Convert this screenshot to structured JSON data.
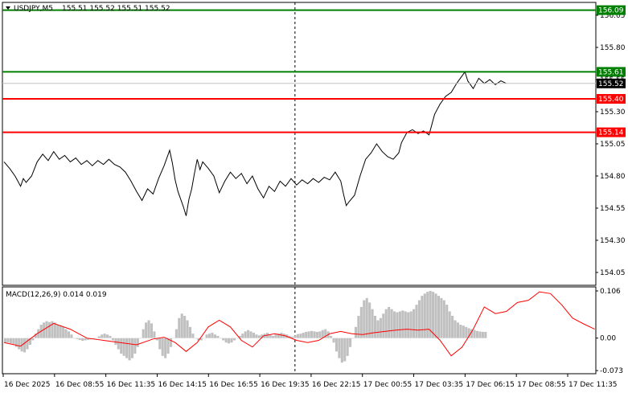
{
  "window": {
    "title": "USDJPY,M5",
    "ohlc": "155.51 155.52 155.51 155.52",
    "indicator_label": "MACD(12,26,9) 0.014 0.019"
  },
  "colors": {
    "price_line": "#000000",
    "support": "#ff0000",
    "resistance": "#008000",
    "histogram": "#c0c0c0",
    "signal": "#ff0000",
    "current_tag": "#000000"
  },
  "chart_data": [
    {
      "type": "line",
      "symbol": "USDJPY",
      "timeframe": "M5",
      "ylim": [
        153.95,
        156.15
      ],
      "yticks": [
        "156.05",
        "155.80",
        "155.55",
        "155.30",
        "155.05",
        "154.80",
        "154.55",
        "154.30",
        "154.05"
      ],
      "x_time_labels": [
        "16 Dec 2025",
        "16 Dec 08:55",
        "16 Dec 11:35",
        "16 Dec 14:15",
        "16 Dec 16:55",
        "16 Dec 19:35",
        "16 Dec 22:15",
        "17 Dec 00:55",
        "17 Dec 03:35",
        "17 Dec 06:15",
        "17 Dec 08:55",
        "17 Dec 11:35"
      ],
      "price_points": [
        [
          0,
          154.91
        ],
        [
          2,
          154.86
        ],
        [
          4,
          154.8
        ],
        [
          5,
          154.76
        ],
        [
          6,
          154.72
        ],
        [
          7,
          154.78
        ],
        [
          8,
          154.75
        ],
        [
          10,
          154.8
        ],
        [
          12,
          154.91
        ],
        [
          14,
          154.97
        ],
        [
          16,
          154.92
        ],
        [
          18,
          154.99
        ],
        [
          20,
          154.93
        ],
        [
          22,
          154.96
        ],
        [
          24,
          154.91
        ],
        [
          26,
          154.94
        ],
        [
          28,
          154.89
        ],
        [
          30,
          154.92
        ],
        [
          32,
          154.88
        ],
        [
          34,
          154.92
        ],
        [
          36,
          154.89
        ],
        [
          38,
          154.93
        ],
        [
          40,
          154.89
        ],
        [
          42,
          154.87
        ],
        [
          44,
          154.83
        ],
        [
          46,
          154.76
        ],
        [
          48,
          154.68
        ],
        [
          50,
          154.61
        ],
        [
          52,
          154.7
        ],
        [
          54,
          154.66
        ],
        [
          56,
          154.78
        ],
        [
          58,
          154.88
        ],
        [
          60,
          155.0
        ],
        [
          61,
          154.9
        ],
        [
          62,
          154.77
        ],
        [
          63,
          154.68
        ],
        [
          64,
          154.62
        ],
        [
          65,
          154.56
        ],
        [
          66,
          154.49
        ],
        [
          67,
          154.62
        ],
        [
          68,
          154.7
        ],
        [
          69,
          154.82
        ],
        [
          70,
          154.93
        ],
        [
          71,
          154.85
        ],
        [
          72,
          154.91
        ],
        [
          74,
          154.86
        ],
        [
          76,
          154.8
        ],
        [
          78,
          154.67
        ],
        [
          80,
          154.76
        ],
        [
          82,
          154.83
        ],
        [
          84,
          154.78
        ],
        [
          86,
          154.82
        ],
        [
          88,
          154.74
        ],
        [
          90,
          154.8
        ],
        [
          92,
          154.7
        ],
        [
          94,
          154.63
        ],
        [
          96,
          154.72
        ],
        [
          98,
          154.68
        ],
        [
          100,
          154.76
        ],
        [
          102,
          154.72
        ],
        [
          104,
          154.78
        ],
        [
          106,
          154.73
        ],
        [
          108,
          154.77
        ],
        [
          110,
          154.74
        ],
        [
          112,
          154.78
        ],
        [
          114,
          154.75
        ],
        [
          116,
          154.79
        ],
        [
          118,
          154.77
        ],
        [
          120,
          154.83
        ],
        [
          122,
          154.76
        ],
        [
          123,
          154.66
        ],
        [
          124,
          154.57
        ],
        [
          125,
          154.6
        ],
        [
          127,
          154.65
        ],
        [
          129,
          154.8
        ],
        [
          131,
          154.93
        ],
        [
          133,
          154.98
        ],
        [
          135,
          155.05
        ],
        [
          137,
          154.99
        ],
        [
          139,
          154.95
        ],
        [
          141,
          154.93
        ],
        [
          143,
          154.98
        ],
        [
          144,
          155.06
        ],
        [
          146,
          155.14
        ],
        [
          148,
          155.16
        ],
        [
          150,
          155.13
        ],
        [
          152,
          155.15
        ],
        [
          154,
          155.12
        ],
        [
          156,
          155.28
        ],
        [
          158,
          155.36
        ],
        [
          160,
          155.42
        ],
        [
          162,
          155.45
        ],
        [
          164,
          155.52
        ],
        [
          166,
          155.58
        ],
        [
          167,
          155.61
        ],
        [
          168,
          155.54
        ],
        [
          170,
          155.48
        ],
        [
          172,
          155.56
        ],
        [
          174,
          155.52
        ],
        [
          176,
          155.55
        ],
        [
          178,
          155.51
        ],
        [
          180,
          155.54
        ],
        [
          182,
          155.52
        ]
      ],
      "levels": [
        {
          "price": 156.09,
          "label": "156.09",
          "kind": "resistance"
        },
        {
          "price": 155.61,
          "label": "155.61",
          "kind": "resistance"
        },
        {
          "price": 155.4,
          "label": "155.40",
          "kind": "support"
        },
        {
          "price": 155.14,
          "label": "155.14",
          "kind": "support"
        }
      ],
      "current_price": {
        "price": 155.52,
        "label": "155.52"
      },
      "period_separator_index": 106
    },
    {
      "type": "bar",
      "name": "MACD(12,26,9)",
      "ylim": [
        -0.08,
        0.115
      ],
      "yticks": [
        "0.106",
        "0.00",
        "-0.073"
      ],
      "histogram": [
        -0.01,
        -0.01,
        -0.012,
        -0.014,
        -0.02,
        -0.025,
        -0.03,
        -0.032,
        -0.025,
        -0.015,
        -0.005,
        0.01,
        0.02,
        0.03,
        0.035,
        0.038,
        0.036,
        0.038,
        0.035,
        0.03,
        0.028,
        0.025,
        0.02,
        0.015,
        0.008,
        0.0,
        -0.002,
        -0.004,
        -0.006,
        -0.005,
        -0.004,
        -0.003,
        -0.002,
        0.0,
        0.004,
        0.008,
        0.01,
        0.008,
        0.005,
        -0.005,
        -0.015,
        -0.025,
        -0.035,
        -0.04,
        -0.045,
        -0.05,
        -0.045,
        -0.035,
        -0.02,
        0.0,
        0.02,
        0.035,
        0.04,
        0.033,
        0.015,
        -0.005,
        -0.025,
        -0.04,
        -0.045,
        -0.035,
        -0.02,
        0.0,
        0.02,
        0.045,
        0.055,
        0.05,
        0.04,
        0.025,
        0.01,
        0.0,
        -0.005,
        -0.005,
        0.0,
        0.008,
        0.01,
        0.012,
        0.008,
        0.005,
        0.0,
        -0.005,
        -0.01,
        -0.012,
        -0.01,
        -0.005,
        0.0,
        0.005,
        0.01,
        0.015,
        0.018,
        0.015,
        0.012,
        0.008,
        0.006,
        0.008,
        0.01,
        0.012,
        0.008,
        0.005,
        0.008,
        0.01,
        0.012,
        0.01,
        0.008,
        0.005,
        0.003,
        0.006,
        0.009,
        0.01,
        0.012,
        0.014,
        0.015,
        0.016,
        0.015,
        0.014,
        0.015,
        0.018,
        0.02,
        0.015,
        0.005,
        -0.01,
        -0.03,
        -0.045,
        -0.055,
        -0.052,
        -0.04,
        -0.02,
        0.0,
        0.025,
        0.05,
        0.07,
        0.085,
        0.09,
        0.08,
        0.065,
        0.05,
        0.04,
        0.045,
        0.055,
        0.065,
        0.07,
        0.065,
        0.06,
        0.058,
        0.06,
        0.062,
        0.06,
        0.058,
        0.06,
        0.065,
        0.075,
        0.085,
        0.095,
        0.1,
        0.104,
        0.106,
        0.104,
        0.1,
        0.095,
        0.09,
        0.085,
        0.075,
        0.06,
        0.05,
        0.04,
        0.035,
        0.03,
        0.028,
        0.025,
        0.022,
        0.02,
        0.018,
        0.016,
        0.015,
        0.014,
        0.014
      ],
      "signal_points": [
        [
          0,
          -0.01
        ],
        [
          6,
          -0.018
        ],
        [
          12,
          0.01
        ],
        [
          18,
          0.033
        ],
        [
          24,
          0.02
        ],
        [
          30,
          0.0
        ],
        [
          36,
          -0.005
        ],
        [
          42,
          -0.01
        ],
        [
          48,
          -0.015
        ],
        [
          54,
          -0.002
        ],
        [
          58,
          0.002
        ],
        [
          62,
          -0.01
        ],
        [
          66,
          -0.03
        ],
        [
          70,
          -0.01
        ],
        [
          74,
          0.025
        ],
        [
          78,
          0.04
        ],
        [
          82,
          0.025
        ],
        [
          86,
          -0.005
        ],
        [
          90,
          -0.02
        ],
        [
          94,
          0.005
        ],
        [
          98,
          0.01
        ],
        [
          102,
          0.005
        ],
        [
          106,
          -0.005
        ],
        [
          110,
          -0.01
        ],
        [
          114,
          -0.005
        ],
        [
          118,
          0.01
        ],
        [
          122,
          0.015
        ],
        [
          126,
          0.01
        ],
        [
          130,
          0.008
        ],
        [
          134,
          0.012
        ],
        [
          138,
          0.015
        ],
        [
          142,
          0.018
        ],
        [
          146,
          0.02
        ],
        [
          150,
          0.018
        ],
        [
          154,
          0.02
        ],
        [
          158,
          -0.005
        ],
        [
          162,
          -0.04
        ],
        [
          166,
          -0.02
        ],
        [
          170,
          0.02
        ],
        [
          174,
          0.07
        ],
        [
          178,
          0.055
        ],
        [
          182,
          0.06
        ],
        [
          186,
          0.08
        ],
        [
          190,
          0.085
        ],
        [
          194,
          0.104
        ],
        [
          198,
          0.1
        ],
        [
          202,
          0.075
        ],
        [
          206,
          0.045
        ],
        [
          210,
          0.032
        ],
        [
          214,
          0.02
        ]
      ]
    }
  ]
}
